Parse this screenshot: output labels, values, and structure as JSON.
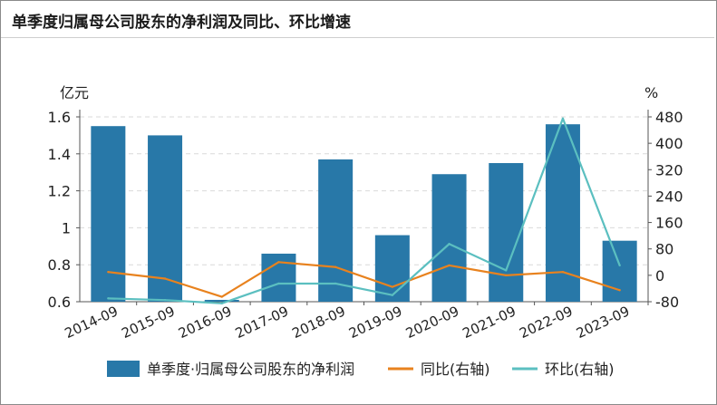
{
  "title": "单季度归属母公司股东的净利润及同比、环比增速",
  "chart_data": {
    "type": "bar",
    "categories": [
      "2014-09",
      "2015-09",
      "2016-09",
      "2017-09",
      "2018-09",
      "2019-09",
      "2020-09",
      "2021-09",
      "2022-09",
      "2023-09"
    ],
    "y_left": {
      "unit": "亿元",
      "range": [
        0.6,
        1.6
      ],
      "ticks": [
        "0.6",
        "0.8",
        "1",
        "1.2",
        "1.4",
        "1.6"
      ]
    },
    "y_right": {
      "unit": "%",
      "range": [
        -80,
        480
      ],
      "ticks": [
        "-80",
        "0",
        "80",
        "160",
        "240",
        "320",
        "400",
        "480"
      ]
    },
    "series": [
      {
        "name": "单季度·归属母公司股东的净利润",
        "type": "bar",
        "axis": "left",
        "color": "#2878a8",
        "values": [
          1.55,
          1.5,
          0.61,
          0.86,
          1.37,
          0.96,
          1.29,
          1.35,
          1.56,
          0.93
        ]
      },
      {
        "name": "同比(右轴)",
        "type": "line",
        "axis": "right",
        "color": "#e8821e",
        "values": [
          10,
          -10,
          -65,
          40,
          25,
          -35,
          30,
          0,
          10,
          -45
        ]
      },
      {
        "name": "环比(右轴)",
        "type": "line",
        "axis": "right",
        "color": "#5bbfc0",
        "values": [
          -70,
          -75,
          -85,
          -25,
          -25,
          -60,
          95,
          15,
          475,
          30
        ]
      }
    ],
    "legend": "bottom",
    "grid": "horizontal-dashed"
  }
}
